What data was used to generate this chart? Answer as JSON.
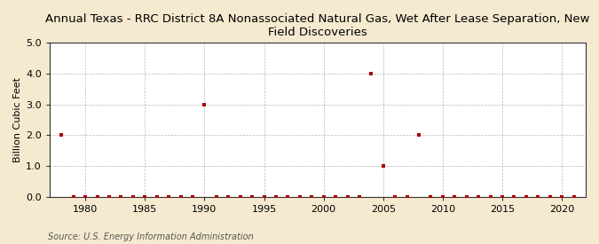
{
  "title": "Annual Texas - RRC District 8A Nonassociated Natural Gas, Wet After Lease Separation, New\nField Discoveries",
  "ylabel": "Billion Cubic Feet",
  "source": "Source: U.S. Energy Information Administration",
  "background_color": "#f5ead0",
  "plot_background_color": "#ffffff",
  "marker_color": "#aa0000",
  "marker_size": 3.5,
  "xlim": [
    1977,
    2022
  ],
  "ylim": [
    0.0,
    5.0
  ],
  "yticks": [
    0.0,
    1.0,
    2.0,
    3.0,
    4.0,
    5.0
  ],
  "xticks": [
    1980,
    1985,
    1990,
    1995,
    2000,
    2005,
    2010,
    2015,
    2020
  ],
  "years": [
    1978,
    1979,
    1980,
    1981,
    1982,
    1983,
    1984,
    1985,
    1986,
    1987,
    1988,
    1989,
    1990,
    1991,
    1992,
    1993,
    1994,
    1995,
    1996,
    1997,
    1998,
    1999,
    2000,
    2001,
    2002,
    2003,
    2004,
    2005,
    2006,
    2007,
    2008,
    2009,
    2010,
    2011,
    2012,
    2013,
    2014,
    2015,
    2016,
    2017,
    2018,
    2019,
    2020,
    2021
  ],
  "values": [
    2.0,
    0.0,
    0.0,
    0.0,
    0.0,
    0.0,
    0.0,
    0.0,
    0.0,
    0.0,
    0.0,
    0.0,
    3.0,
    0.0,
    0.0,
    0.0,
    0.0,
    0.0,
    0.0,
    0.0,
    0.0,
    0.0,
    0.0,
    0.0,
    0.0,
    0.0,
    4.0,
    1.0,
    0.0,
    0.0,
    2.0,
    0.0,
    0.0,
    0.0,
    0.0,
    0.0,
    0.0,
    0.0,
    0.0,
    0.0,
    0.0,
    0.0,
    0.0,
    0.0
  ],
  "title_fontsize": 9.5,
  "ylabel_fontsize": 8,
  "tick_fontsize": 8,
  "source_fontsize": 7
}
